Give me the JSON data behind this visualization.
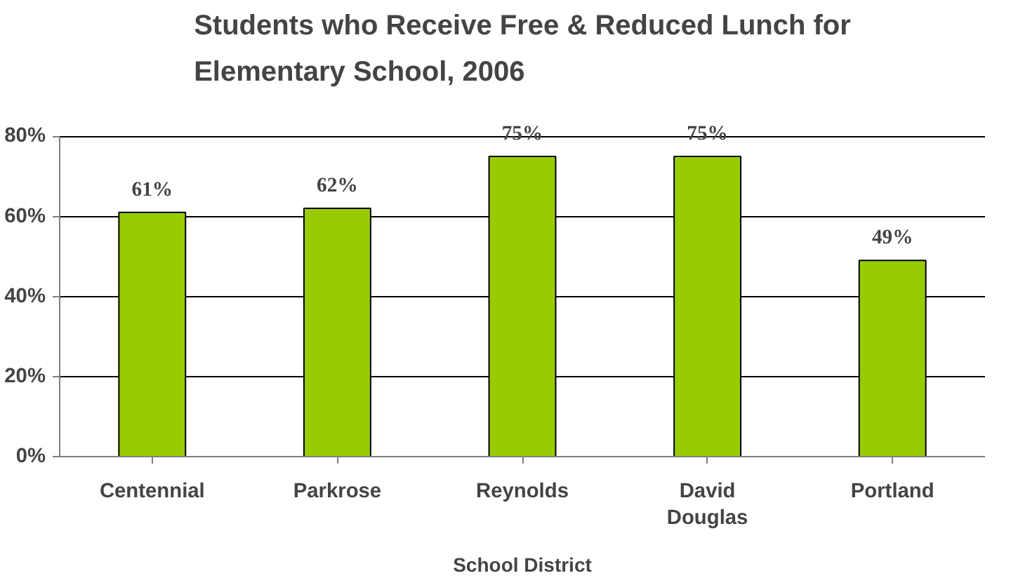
{
  "chart_data": {
    "type": "bar",
    "title": "Students who Receive Free & Reduced Lunch for Elementary School, 2006",
    "xlabel": "School District",
    "categories": [
      "Centennial",
      "Parkrose",
      "Reynolds",
      "David Douglas",
      "Portland"
    ],
    "values": [
      61,
      62,
      75,
      75,
      49
    ],
    "value_labels": [
      "61%",
      "62%",
      "75%",
      "75%",
      "49%"
    ],
    "color": "#99cc00",
    "ylim": [
      0,
      80
    ],
    "yticks": [
      {
        "value": 0,
        "label": "0%"
      },
      {
        "value": 20,
        "label": "20%"
      },
      {
        "value": 40,
        "label": "40%"
      },
      {
        "value": 60,
        "label": "60%"
      },
      {
        "value": 80,
        "label": "80%"
      }
    ],
    "grid": "y"
  }
}
